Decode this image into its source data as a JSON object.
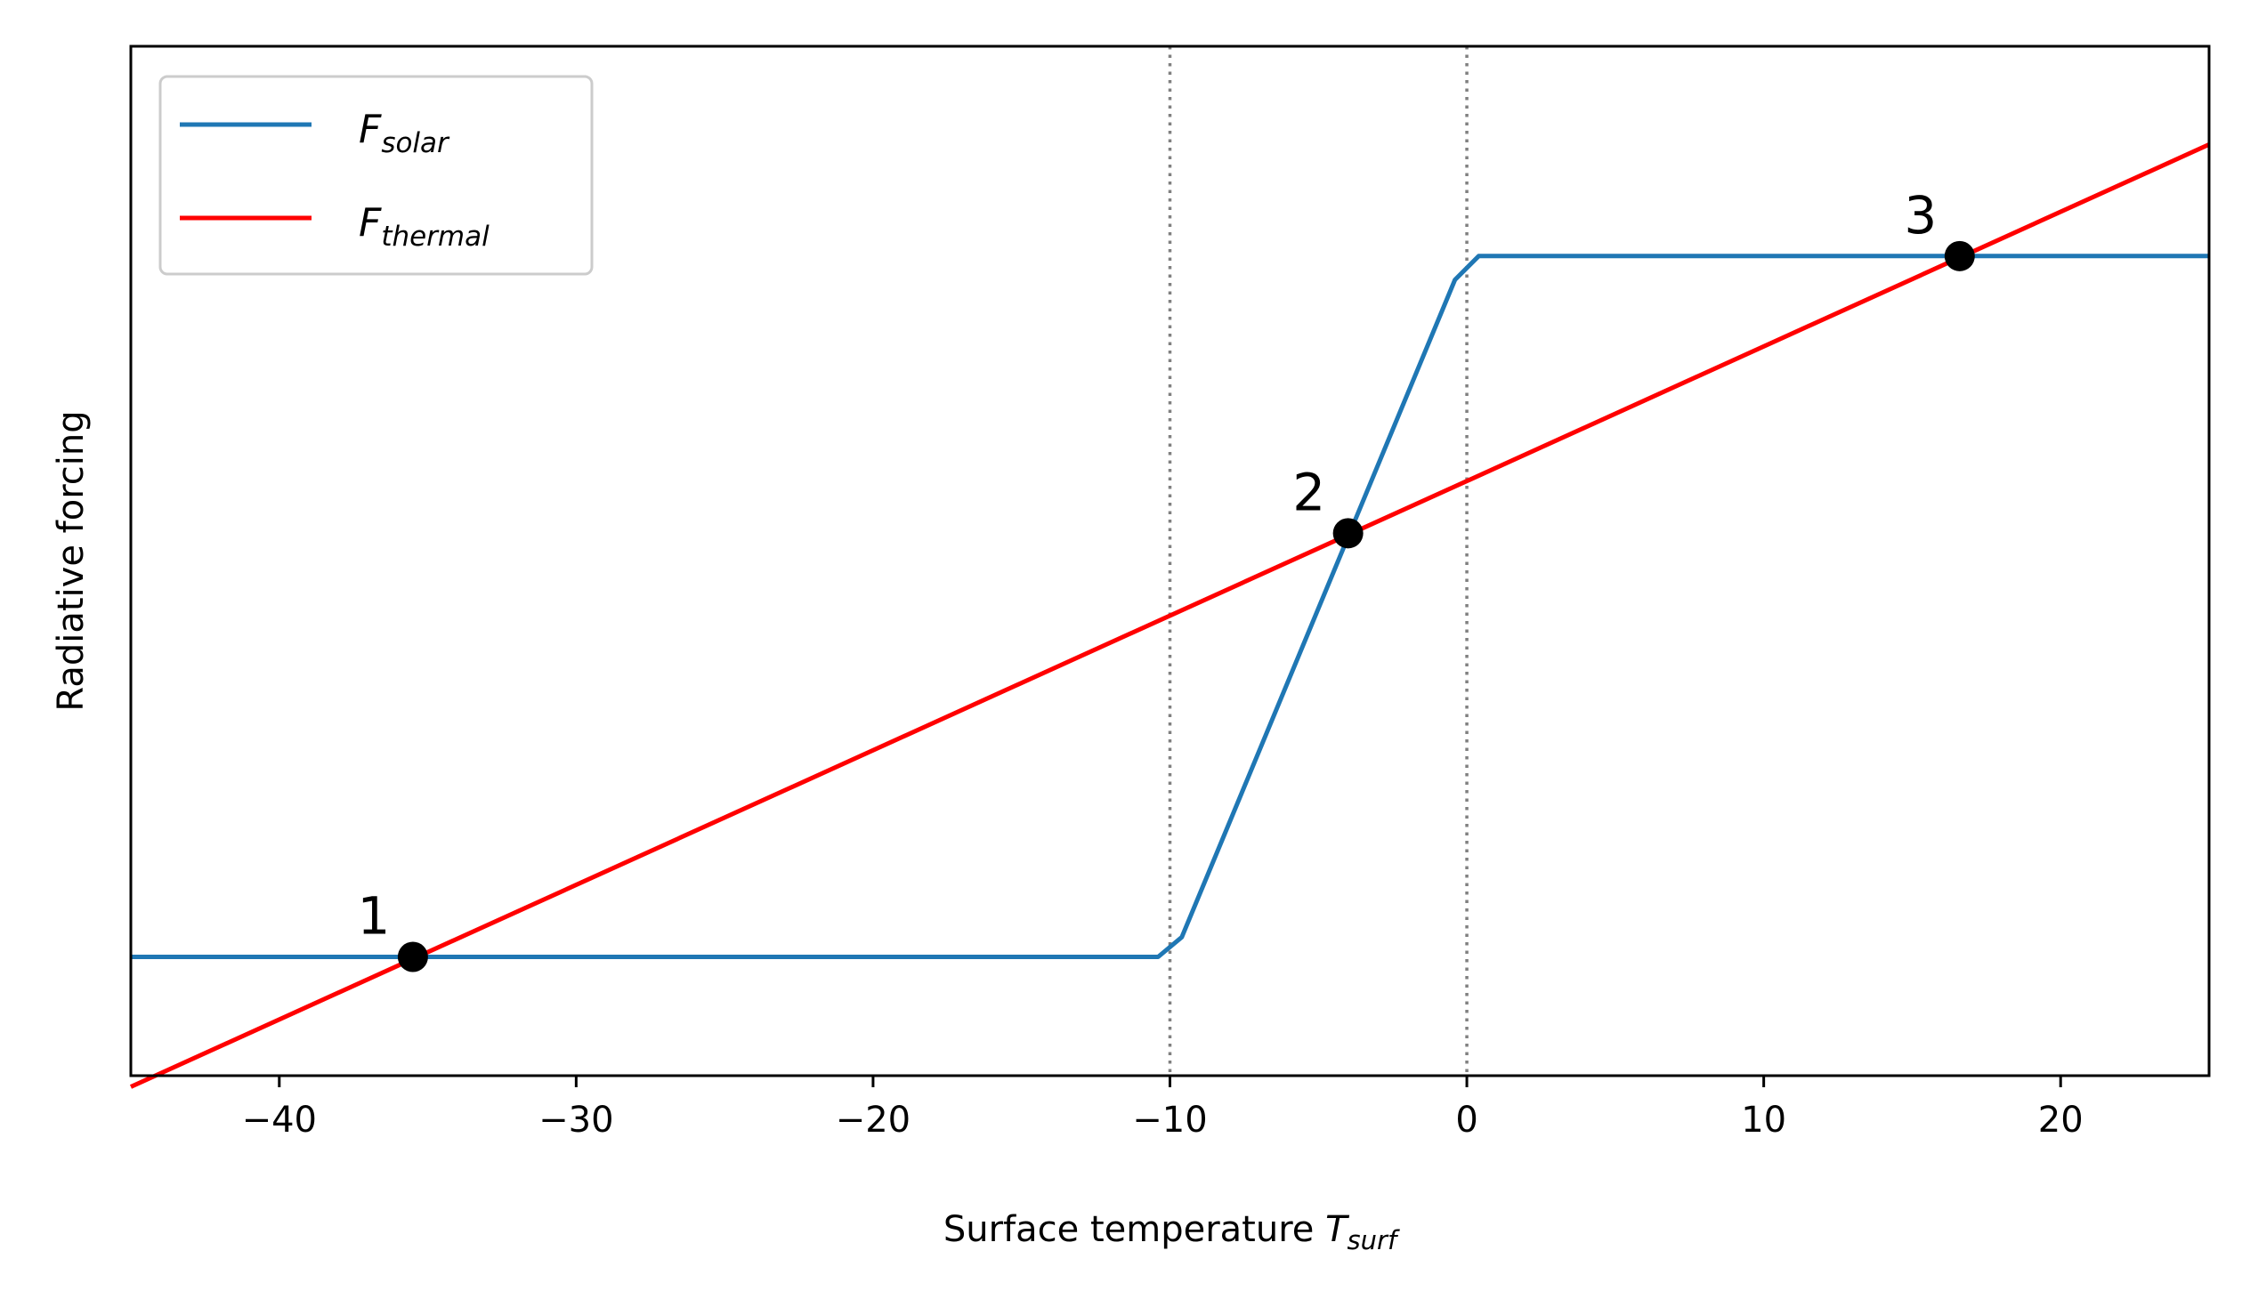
{
  "chart_data": {
    "type": "line",
    "xlabel": {
      "main": "Surface temperature ",
      "var": "T",
      "sub": "surf"
    },
    "ylabel": "Radiative forcing",
    "xlim": [
      -45,
      25
    ],
    "ylim": [
      -0.15,
      1.15
    ],
    "xticks": [
      -40,
      -30,
      -20,
      -10,
      0,
      10,
      20
    ],
    "xtick_labels": [
      "−40",
      "−30",
      "−20",
      "−10",
      "0",
      "10",
      "20"
    ],
    "yticks": [],
    "grid": false,
    "legend_position": "top-left",
    "vlines": [
      -10,
      0
    ],
    "series": [
      {
        "name": "F",
        "name_sub": "solar",
        "color": "#1f77b4",
        "x": [
          -45,
          -10.4,
          -9.6,
          -0.4,
          0.4,
          25
        ],
        "y": [
          0.0,
          0.0,
          0.025,
          0.855,
          0.885,
          0.885
        ]
      },
      {
        "name": "F",
        "name_sub": "thermal",
        "color": "#ff0000",
        "x": [
          -45,
          25
        ],
        "y": [
          -0.164,
          1.026
        ]
      }
    ],
    "points": [
      {
        "label": "1",
        "x": -35.5,
        "y": 0.0
      },
      {
        "label": "2",
        "x": -4.0,
        "y": 0.535
      },
      {
        "label": "3",
        "x": 16.6,
        "y": 0.885
      }
    ]
  }
}
